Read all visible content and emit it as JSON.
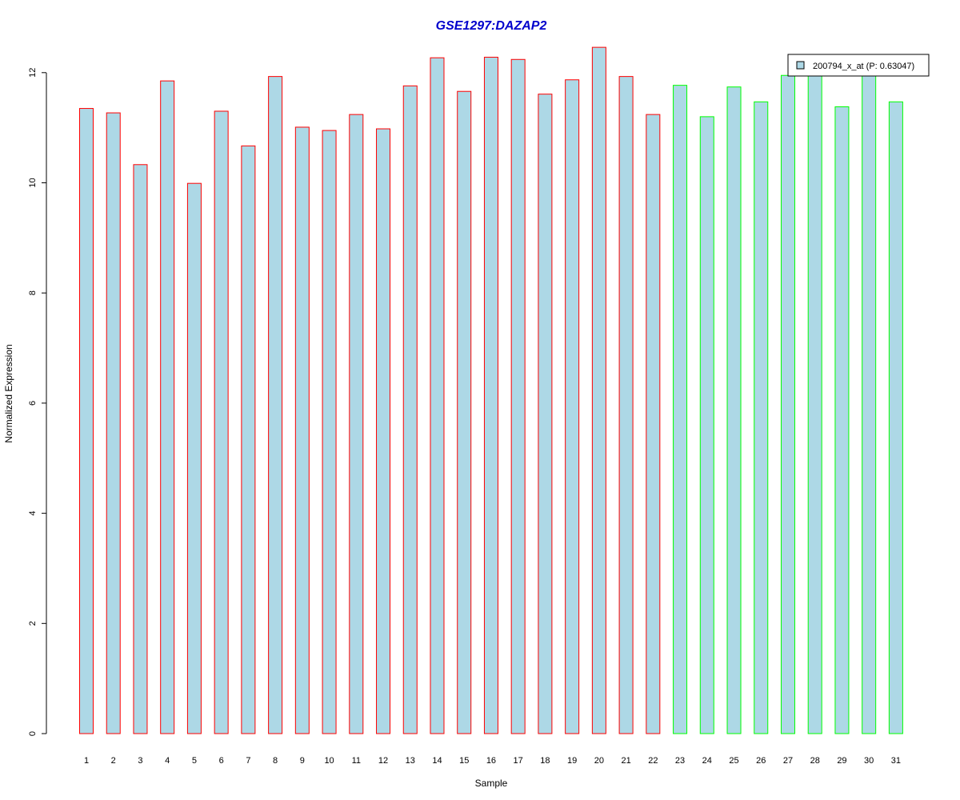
{
  "chart_data": {
    "type": "bar",
    "title": "GSE1297:DAZAP2",
    "xlabel": "Sample",
    "ylabel": "Normalized Expression",
    "ylim": [
      0,
      12.5
    ],
    "yticks": [
      0,
      2,
      4,
      6,
      8,
      10,
      12
    ],
    "grid": false,
    "legend_position": "top-right",
    "fill_color": "#add8e6",
    "categories": [
      "1",
      "2",
      "3",
      "4",
      "5",
      "6",
      "7",
      "8",
      "9",
      "10",
      "11",
      "12",
      "13",
      "14",
      "15",
      "16",
      "17",
      "18",
      "19",
      "20",
      "21",
      "22",
      "23",
      "24",
      "25",
      "26",
      "27",
      "28",
      "29",
      "30",
      "31"
    ],
    "series": [
      {
        "name": "200794_x_at (P: 0.63047)",
        "values": [
          11.35,
          11.27,
          10.33,
          11.85,
          9.99,
          11.3,
          10.67,
          11.93,
          11.01,
          10.95,
          11.24,
          10.98,
          11.76,
          12.27,
          11.66,
          12.28,
          12.24,
          11.61,
          11.87,
          12.46,
          11.93,
          11.24,
          11.77,
          11.2,
          11.74,
          11.47,
          11.95,
          11.96,
          11.38,
          11.97,
          11.47
        ],
        "border_colors": [
          "#ff0000",
          "#ff0000",
          "#ff0000",
          "#ff0000",
          "#ff0000",
          "#ff0000",
          "#ff0000",
          "#ff0000",
          "#ff0000",
          "#ff0000",
          "#ff0000",
          "#ff0000",
          "#ff0000",
          "#ff0000",
          "#ff0000",
          "#ff0000",
          "#ff0000",
          "#ff0000",
          "#ff0000",
          "#ff0000",
          "#ff0000",
          "#ff0000",
          "#00ff00",
          "#00ff00",
          "#00ff00",
          "#00ff00",
          "#00ff00",
          "#00ff00",
          "#00ff00",
          "#00ff00",
          "#00ff00"
        ]
      }
    ]
  }
}
